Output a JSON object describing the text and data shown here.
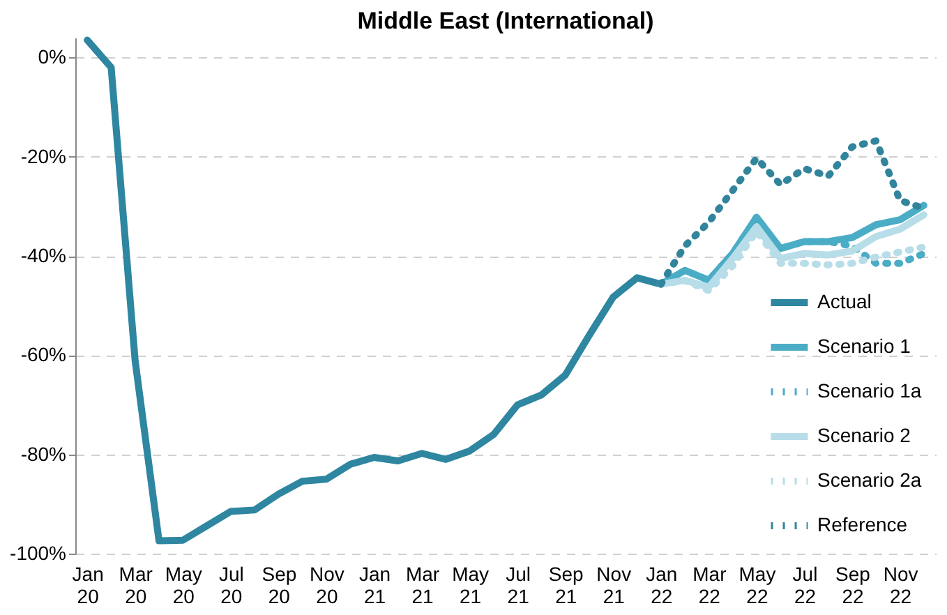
{
  "chart_data": {
    "type": "line",
    "title": "Middle East (International)",
    "categories": [
      "Jan 20",
      null,
      "Mar 20",
      null,
      "May 20",
      null,
      "Jul 20",
      null,
      "Sep 20",
      null,
      "Nov 20",
      null,
      "Jan 21",
      null,
      "Mar 21",
      null,
      "May 21",
      null,
      "Jul 21",
      null,
      "Sep 21",
      null,
      "Nov 21",
      null,
      "Jan 22",
      null,
      "Mar 22",
      null,
      "May 22",
      null,
      "Jul 22",
      null,
      "Sep 22",
      null,
      "Nov 22",
      null
    ],
    "series": [
      {
        "name": "Actual",
        "color": "#2e86a0",
        "line_style": "solid",
        "values": [
          3.5,
          -2,
          -61,
          -97.4,
          -97.3,
          -94.4,
          -91.5,
          -91.2,
          -88,
          -85.4,
          -85,
          -82,
          -80.6,
          -81.3,
          -79.8,
          -81,
          -79.3,
          -76,
          -70,
          -68,
          -64,
          -56,
          -48.3,
          -44.4,
          -45.7,
          null,
          null,
          null,
          null,
          null,
          null,
          null,
          null,
          null,
          null,
          null
        ]
      },
      {
        "name": "Scenario 1",
        "color": "#4bacc6",
        "line_style": "solid",
        "values": [
          null,
          null,
          null,
          null,
          null,
          null,
          null,
          null,
          null,
          null,
          null,
          null,
          null,
          null,
          null,
          null,
          null,
          null,
          null,
          null,
          null,
          null,
          null,
          null,
          -45.7,
          -42.9,
          -44.9,
          -39.5,
          -32.2,
          -38.5,
          -37.1,
          -37.1,
          -36.3,
          -33.7,
          -32.7,
          -29.8
        ]
      },
      {
        "name": "Scenario 1a",
        "color": "#4bacc6",
        "line_style": "dotted",
        "values": [
          null,
          null,
          null,
          null,
          null,
          null,
          null,
          null,
          null,
          null,
          null,
          null,
          null,
          null,
          null,
          null,
          null,
          null,
          null,
          null,
          null,
          null,
          null,
          null,
          -45.7,
          -42.9,
          -44.9,
          -39.5,
          -32.2,
          -38.5,
          -37.1,
          -37.1,
          -38,
          -41.5,
          -41.5,
          -39.5
        ]
      },
      {
        "name": "Scenario 2",
        "color": "#b7dde8",
        "line_style": "solid",
        "values": [
          null,
          null,
          null,
          null,
          null,
          null,
          null,
          null,
          null,
          null,
          null,
          null,
          null,
          null,
          null,
          null,
          null,
          null,
          null,
          null,
          null,
          null,
          null,
          null,
          -45.7,
          -44.9,
          -46.3,
          -40.5,
          -34.1,
          -40.5,
          -39.5,
          -39.8,
          -39,
          -36.1,
          -34.6,
          -31.7
        ]
      },
      {
        "name": "Scenario 2a",
        "color": "#b7dde8",
        "line_style": "dotted",
        "values": [
          null,
          null,
          null,
          null,
          null,
          null,
          null,
          null,
          null,
          null,
          null,
          null,
          null,
          null,
          null,
          null,
          null,
          null,
          null,
          null,
          null,
          null,
          null,
          null,
          -45.7,
          -45,
          -47,
          -42,
          -35,
          -41.5,
          -41.5,
          -41.8,
          -41.5,
          -40.2,
          -39.2,
          -38.2
        ]
      },
      {
        "name": "Reference",
        "color": "#31849b",
        "line_style": "dotted",
        "values": [
          null,
          null,
          null,
          null,
          null,
          null,
          null,
          null,
          null,
          null,
          null,
          null,
          null,
          null,
          null,
          null,
          null,
          null,
          null,
          null,
          null,
          null,
          null,
          null,
          -45.7,
          -38,
          -33.2,
          -26.8,
          -20.3,
          -25.6,
          -22.4,
          -23.9,
          -18,
          -16.8,
          -28.8,
          -30.4
        ]
      }
    ],
    "ylim": [
      -100,
      4
    ],
    "yticks": [
      {
        "value": -100,
        "label": "-100%"
      },
      {
        "value": -80,
        "label": "-80%"
      },
      {
        "value": -60,
        "label": "-60%"
      },
      {
        "value": -40,
        "label": "-40%"
      },
      {
        "value": -20,
        "label": "-20%"
      },
      {
        "value": 0,
        "label": "0%"
      }
    ],
    "grid": "y",
    "legend": "bottom right"
  }
}
